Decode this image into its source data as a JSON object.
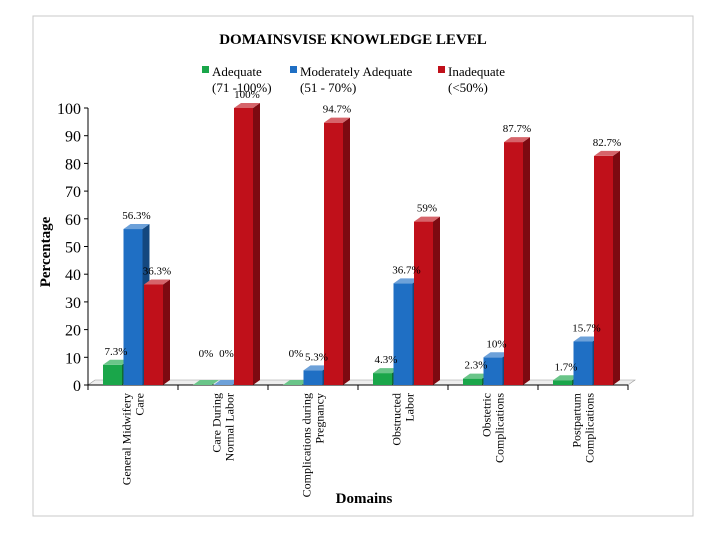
{
  "chart_data": {
    "type": "bar",
    "title": "DOMAINSVISE KNOWLEDGE LEVEL",
    "xlabel": "Domains",
    "ylabel": "Percentage",
    "ylim": [
      0,
      100
    ],
    "yticks": [
      "0",
      "10",
      "20",
      "30",
      "40",
      "50",
      "60",
      "70",
      "80",
      "90",
      "100"
    ],
    "grid": false,
    "legend_position": "top",
    "categories": [
      "General Midwifery Care",
      "Care During Normal Labor",
      "Complications during Pregnancy",
      "Obstructed Labor",
      "Obstetric Complications",
      "Postpartum Complications"
    ],
    "series": [
      {
        "name": "Adequate",
        "range_label": "(71 -100%)",
        "color": "#1aa64a",
        "values": [
          7.3,
          0,
          0,
          4.3,
          2.3,
          1.7
        ],
        "labels": [
          "7.3%",
          "0%",
          "0%",
          "4.3%",
          "2.3%",
          "1.7%"
        ]
      },
      {
        "name": "Moderately Adequate",
        "range_label": "(51 - 70%)",
        "color": "#1f6fc4",
        "values": [
          56.3,
          0,
          5.3,
          36.7,
          10,
          15.7
        ],
        "labels": [
          "56.3%",
          "0%",
          "5.3%",
          "36.7%",
          "10%",
          "15.7%"
        ]
      },
      {
        "name": "Inadequate",
        "range_label": "(<50%)",
        "color": "#c0101a",
        "values": [
          36.3,
          100,
          94.7,
          59,
          87.7,
          82.7
        ],
        "labels": [
          "36.3%",
          "100%",
          "94.7%",
          "59%",
          "87.7%",
          "82.7%"
        ]
      }
    ]
  }
}
